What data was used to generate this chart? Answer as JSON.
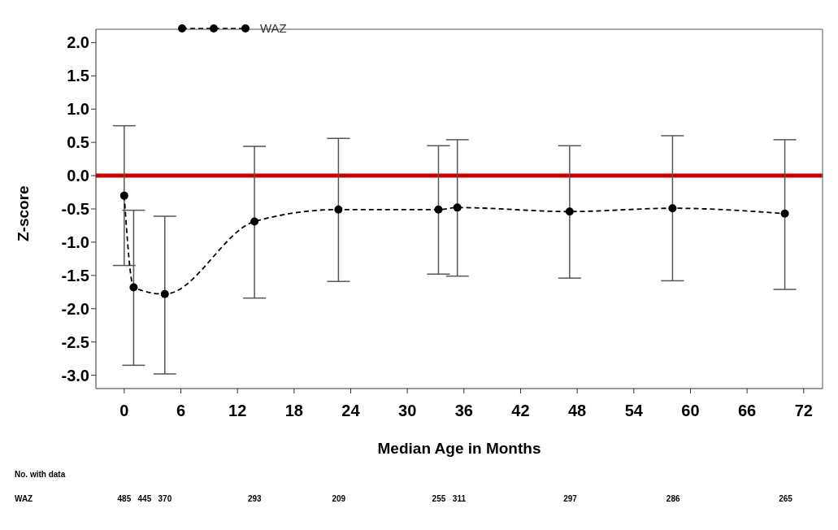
{
  "chart_data": {
    "type": "line",
    "xlabel": "Median Age in Months",
    "ylabel": "Z-score",
    "x": [
      0,
      1,
      4.3,
      13.8,
      22.7,
      33.3,
      35.3,
      47.2,
      58.1,
      70
    ],
    "series": [
      {
        "name": "WAZ",
        "color": "#000000",
        "values": [
          -0.3,
          -1.68,
          -1.78,
          -0.69,
          -0.51,
          -0.51,
          -0.48,
          -0.54,
          -0.49,
          -0.57
        ],
        "errors": [
          [
            -1.35,
            0.75
          ],
          [
            -2.85,
            -0.52
          ],
          [
            -2.98,
            -0.61
          ],
          [
            -1.84,
            0.44
          ],
          [
            -1.59,
            0.56
          ],
          [
            -1.48,
            0.45
          ],
          [
            -1.51,
            0.54
          ],
          [
            -1.54,
            0.45
          ],
          [
            -1.58,
            0.6
          ],
          [
            -1.71,
            0.54
          ]
        ]
      }
    ],
    "xlim": [
      -3,
      74
    ],
    "xticks": [
      0,
      6,
      12,
      18,
      24,
      30,
      36,
      42,
      48,
      54,
      60,
      66,
      72
    ],
    "ylim": [
      -3.2,
      2.2
    ],
    "yticks": [
      {
        "value": 2,
        "label": "2.0"
      },
      {
        "value": 1.5,
        "label": "1.5"
      },
      {
        "value": 1,
        "label": "1.0"
      },
      {
        "value": 0.5,
        "label": "0.5"
      },
      {
        "value": 0,
        "label": "0.0"
      },
      {
        "value": -0.5,
        "label": "-0.5"
      },
      {
        "value": -1,
        "label": "-1.0"
      },
      {
        "value": -1.5,
        "label": "-1.5"
      },
      {
        "value": -2,
        "label": "-2.0"
      },
      {
        "value": -2.5,
        "label": "-2.5"
      },
      {
        "value": -3,
        "label": "-3.0"
      }
    ],
    "ref_lines": [
      {
        "axis": "y",
        "value": 0,
        "color": "#cc0000"
      }
    ],
    "grid": false,
    "legend": "top left",
    "marker": "circle",
    "line_style": "dashed",
    "annotations": [
      "No. with data",
      "WAZ",
      "485",
      "445",
      "370",
      "293",
      "209",
      "255",
      "311",
      "297",
      "286",
      "265"
    ]
  }
}
